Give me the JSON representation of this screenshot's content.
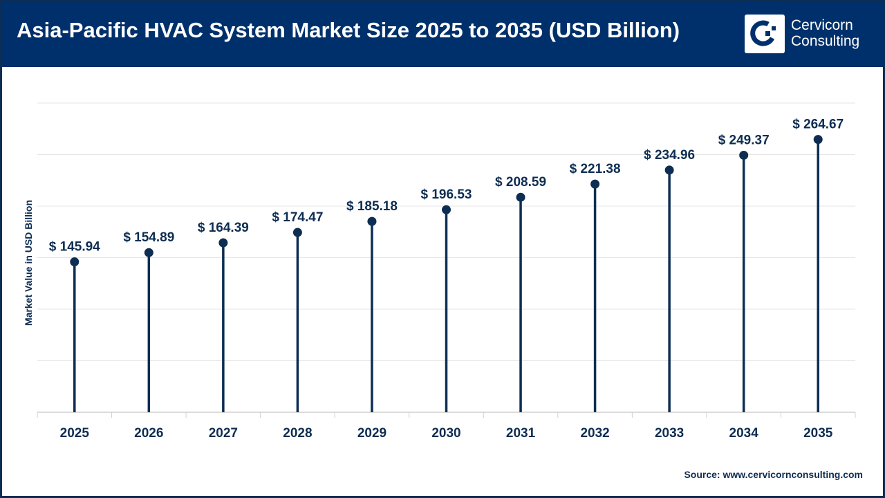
{
  "header": {
    "title": "Asia-Pacific HVAC System Market Size 2025 to 2035 (USD Billion)",
    "logo_text_line1": "Cervicorn",
    "logo_text_line2": "Consulting"
  },
  "source": "Source: www.cervicornconsulting.com",
  "colors": {
    "header": "#00306b",
    "series": "#0d2d52",
    "grid": "#e5e5e5"
  },
  "chart_data": {
    "type": "lollipop",
    "title": "Asia-Pacific HVAC System Market Size 2025 to 2035 (USD Billion)",
    "xlabel": "",
    "ylabel": "Market Value in USD Billion",
    "ylim": [
      0,
      300
    ],
    "y_grid_step": 50,
    "grid": true,
    "categories": [
      "2025",
      "2026",
      "2027",
      "2028",
      "2029",
      "2030",
      "2031",
      "2032",
      "2033",
      "2034",
      "2035"
    ],
    "values": [
      145.94,
      154.89,
      164.39,
      174.47,
      185.18,
      196.53,
      208.59,
      221.38,
      234.96,
      249.37,
      264.67
    ],
    "labels": [
      "$ 145.94",
      "$ 154.89",
      "$ 164.39",
      "$ 174.47",
      "$ 185.18",
      "$ 196.53",
      "$ 208.59",
      "$ 221.38",
      "$ 234.96",
      "$ 249.37",
      "$ 264.67"
    ]
  }
}
